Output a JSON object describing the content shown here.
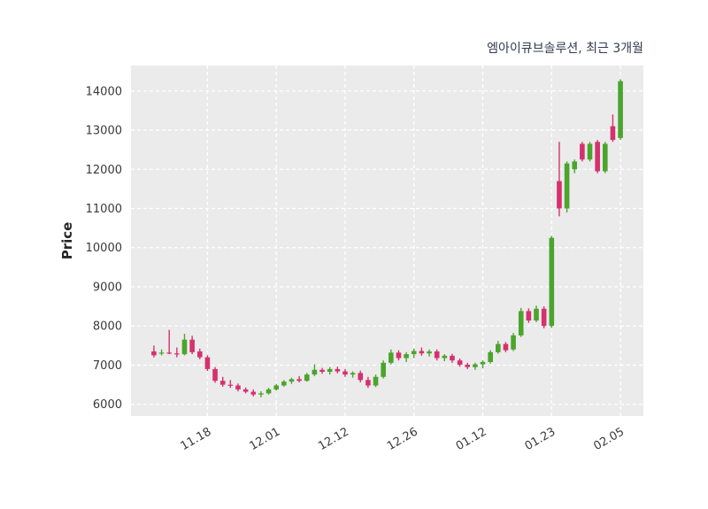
{
  "title": "엠아이큐브솔루션, 최근 3개월",
  "colors": {
    "up": "#4ba42c",
    "down": "#d5316e",
    "panel_bg": "#ebebeb",
    "grid": "#ffffff",
    "tick_text": "#3a3a3a",
    "title_text": "#333b4f",
    "ylabel_text": "#262626",
    "figure_bg": "#ffffff"
  },
  "chart_data": {
    "type": "candlestick",
    "title": "엠아이큐브솔루션, 최근 3개월",
    "xlabel": "",
    "ylabel": "Price",
    "grid": true,
    "y_ticks": [
      6000,
      7000,
      8000,
      9000,
      10000,
      11000,
      12000,
      13000,
      14000
    ],
    "ylim": [
      5700,
      14650
    ],
    "xlim": [
      -3,
      64
    ],
    "x_tick_labels": [
      "11.18",
      "12.01",
      "12.12",
      "12.26",
      "01.12",
      "01.23",
      "02.05"
    ],
    "x_tick_indices": [
      7,
      16,
      25,
      34,
      43,
      52,
      61
    ],
    "ohlc_format": [
      "open",
      "high",
      "low",
      "close"
    ],
    "candles": [
      [
        7350,
        7500,
        7200,
        7250
      ],
      [
        7300,
        7400,
        7250,
        7320
      ],
      [
        7320,
        7900,
        7280,
        7300
      ],
      [
        7300,
        7450,
        7200,
        7280
      ],
      [
        7280,
        7800,
        7250,
        7650
      ],
      [
        7650,
        7750,
        7280,
        7330
      ],
      [
        7350,
        7420,
        7150,
        7200
      ],
      [
        7200,
        7250,
        6850,
        6900
      ],
      [
        6900,
        6950,
        6550,
        6600
      ],
      [
        6600,
        6700,
        6450,
        6500
      ],
      [
        6500,
        6620,
        6420,
        6480
      ],
      [
        6480,
        6530,
        6330,
        6380
      ],
      [
        6380,
        6430,
        6280,
        6320
      ],
      [
        6320,
        6380,
        6200,
        6250
      ],
      [
        6250,
        6330,
        6180,
        6280
      ],
      [
        6280,
        6420,
        6250,
        6380
      ],
      [
        6380,
        6520,
        6350,
        6480
      ],
      [
        6480,
        6620,
        6450,
        6580
      ],
      [
        6580,
        6680,
        6520,
        6640
      ],
      [
        6640,
        6720,
        6560,
        6600
      ],
      [
        6600,
        6800,
        6580,
        6760
      ],
      [
        6760,
        7020,
        6720,
        6880
      ],
      [
        6880,
        6930,
        6780,
        6830
      ],
      [
        6830,
        6950,
        6760,
        6900
      ],
      [
        6900,
        6960,
        6790,
        6840
      ],
      [
        6840,
        6900,
        6700,
        6760
      ],
      [
        6760,
        6840,
        6680,
        6800
      ],
      [
        6800,
        6860,
        6560,
        6620
      ],
      [
        6620,
        6700,
        6420,
        6480
      ],
      [
        6480,
        6760,
        6440,
        6700
      ],
      [
        6700,
        7120,
        6660,
        7060
      ],
      [
        7060,
        7400,
        7020,
        7320
      ],
      [
        7320,
        7380,
        7120,
        7180
      ],
      [
        7180,
        7330,
        7080,
        7280
      ],
      [
        7280,
        7420,
        7180,
        7360
      ],
      [
        7360,
        7450,
        7240,
        7300
      ],
      [
        7300,
        7400,
        7220,
        7350
      ],
      [
        7350,
        7400,
        7120,
        7180
      ],
      [
        7180,
        7280,
        7100,
        7240
      ],
      [
        7240,
        7290,
        7060,
        7120
      ],
      [
        7120,
        7170,
        6960,
        7010
      ],
      [
        7010,
        7060,
        6900,
        6950
      ],
      [
        6950,
        7060,
        6880,
        7020
      ],
      [
        7020,
        7120,
        6920,
        7080
      ],
      [
        7080,
        7380,
        7040,
        7330
      ],
      [
        7330,
        7620,
        7290,
        7540
      ],
      [
        7540,
        7590,
        7330,
        7380
      ],
      [
        7400,
        7820,
        7360,
        7760
      ],
      [
        7760,
        8460,
        7720,
        8380
      ],
      [
        8380,
        8450,
        8080,
        8140
      ],
      [
        8140,
        8520,
        8100,
        8440
      ],
      [
        8440,
        8500,
        7940,
        8000
      ],
      [
        8000,
        10300,
        7950,
        10250
      ],
      [
        11700,
        12700,
        10800,
        11000
      ],
      [
        11000,
        12200,
        10900,
        12150
      ],
      [
        12000,
        12250,
        11900,
        12200
      ],
      [
        12650,
        12700,
        12200,
        12250
      ],
      [
        12250,
        12700,
        12200,
        12650
      ],
      [
        12700,
        12750,
        11900,
        11950
      ],
      [
        11950,
        12700,
        11900,
        12650
      ],
      [
        13100,
        13400,
        12700,
        12750
      ],
      [
        12800,
        14300,
        12750,
        14250
      ]
    ]
  }
}
